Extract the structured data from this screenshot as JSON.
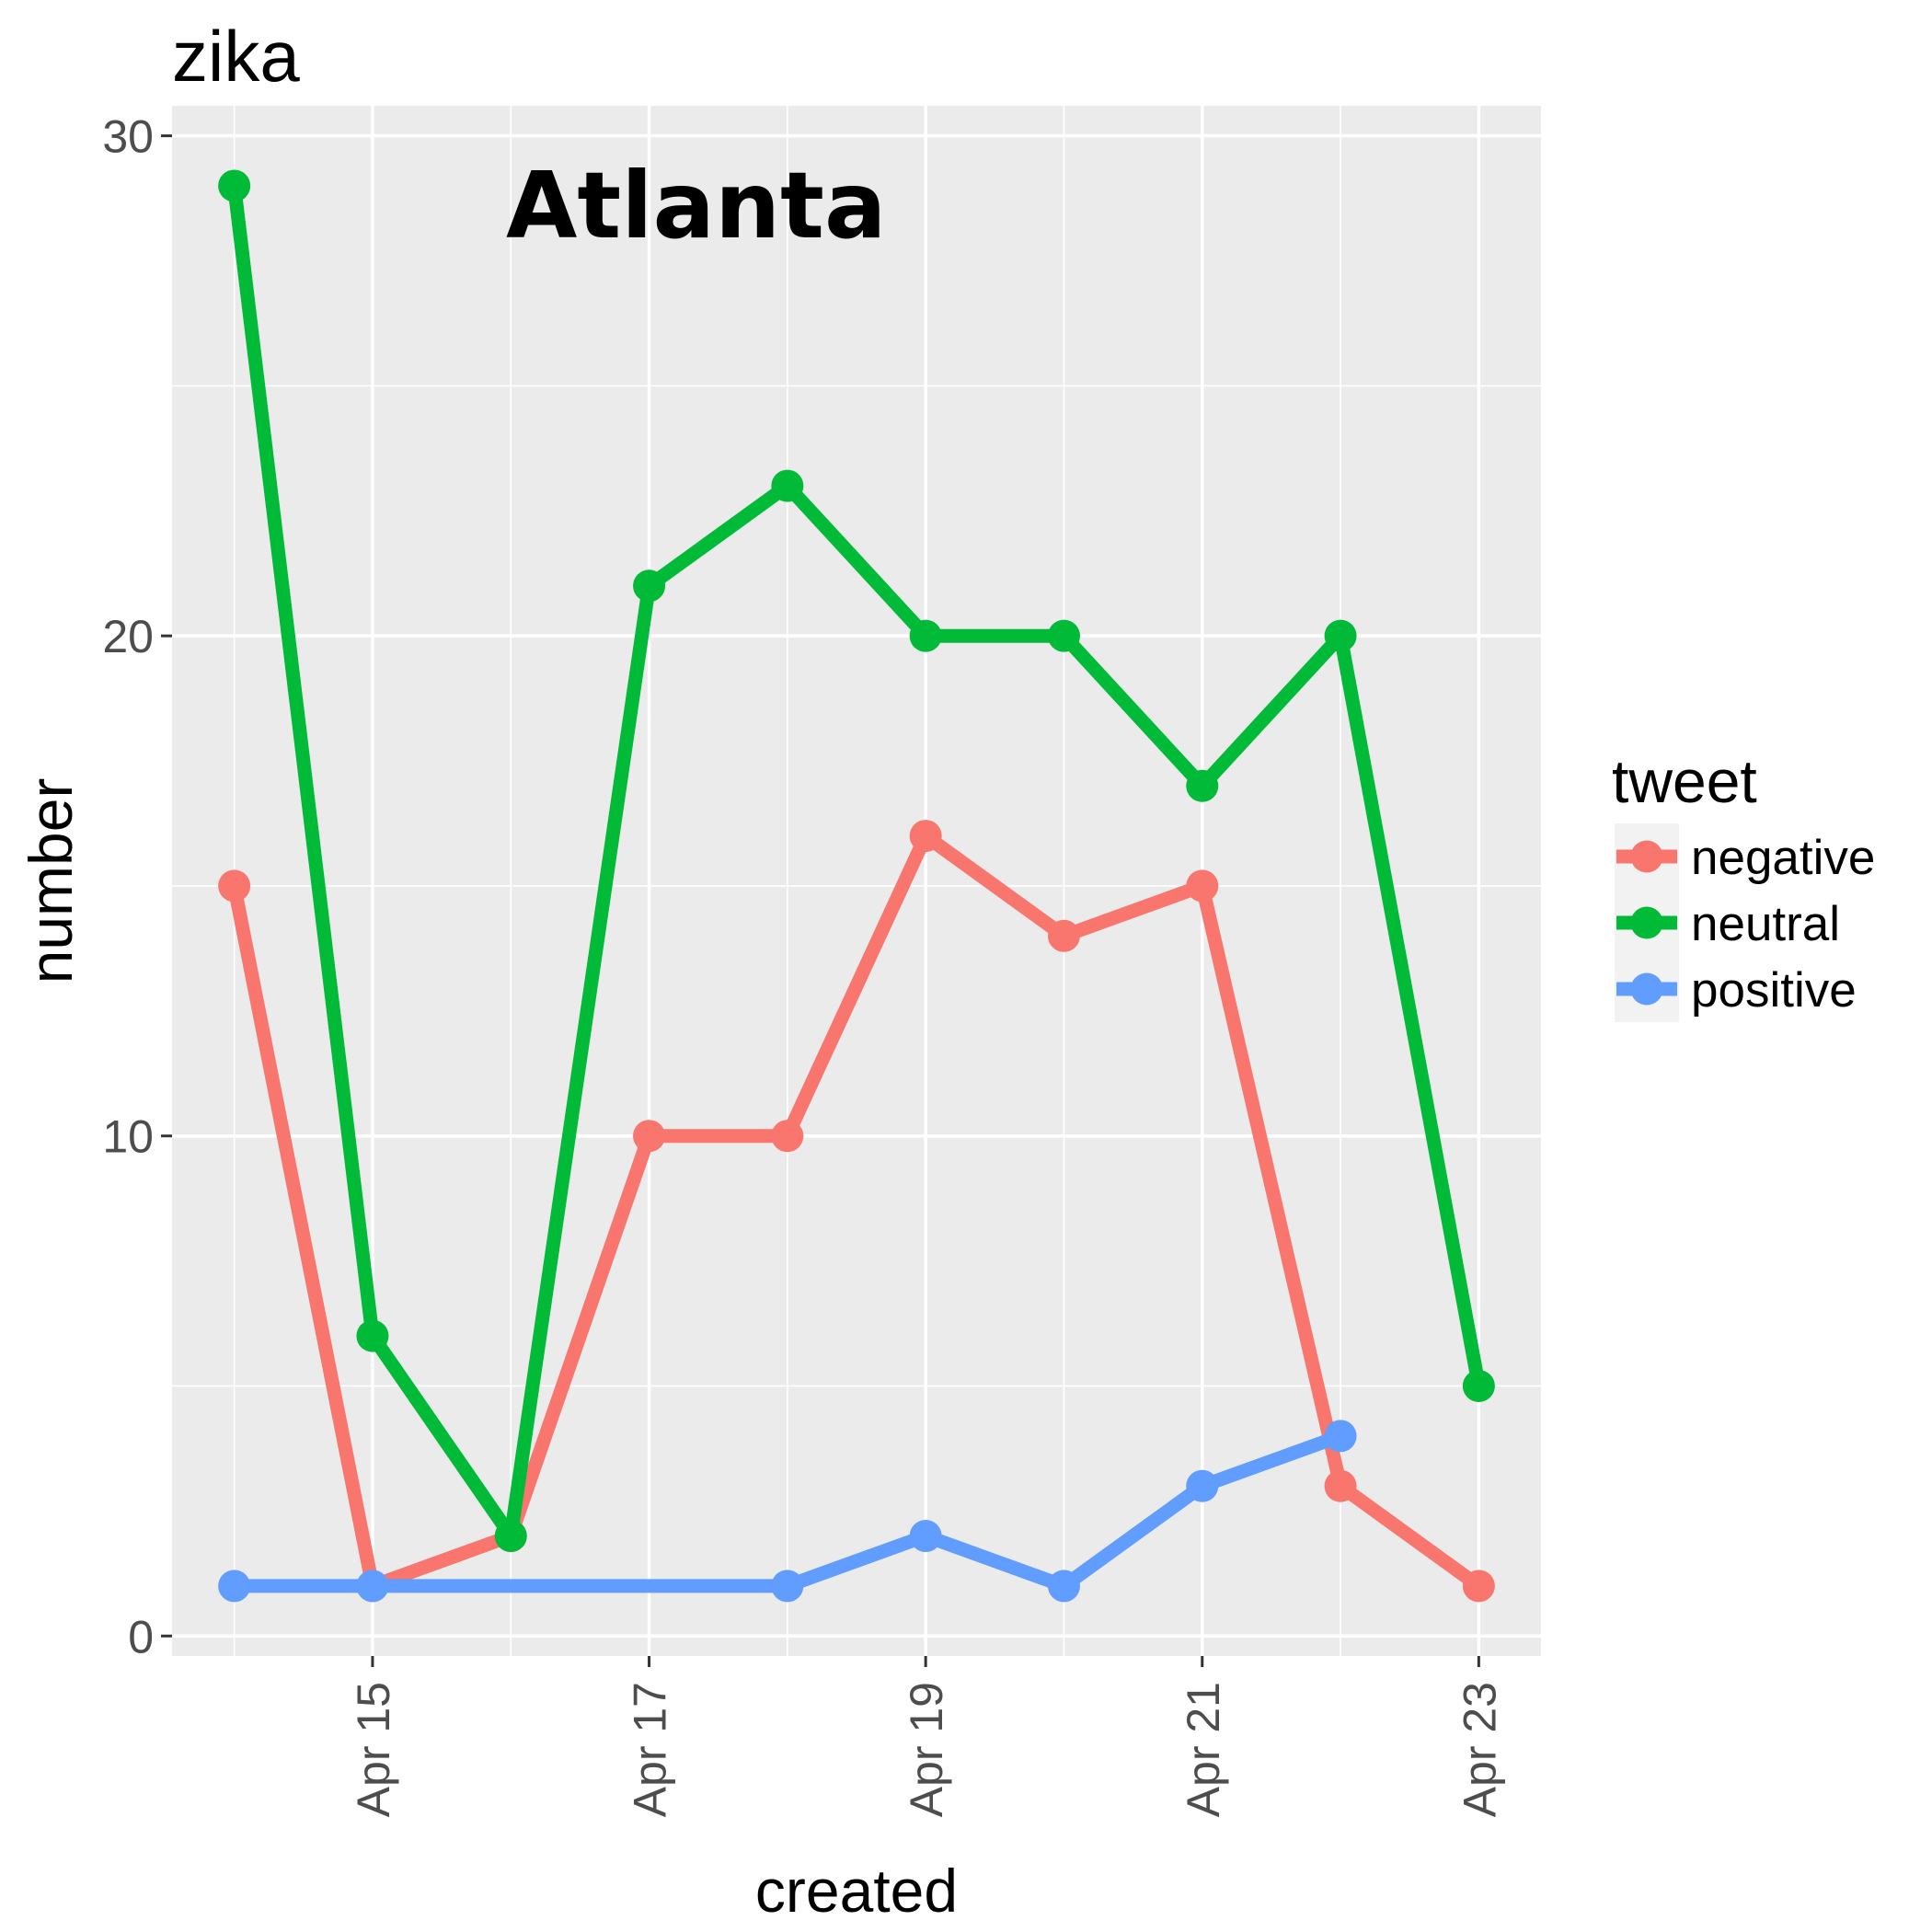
{
  "chart_data": {
    "type": "line",
    "title": "zika",
    "annotation": "Atlanta",
    "xlabel": "created",
    "ylabel": "number",
    "x": [
      "Apr 14",
      "Apr 15",
      "Apr 16",
      "Apr 17",
      "Apr 18",
      "Apr 19",
      "Apr 20",
      "Apr 21",
      "Apr 22",
      "Apr 23"
    ],
    "x_ticks": [
      {
        "label": "Apr 15",
        "index": 1
      },
      {
        "label": "Apr 17",
        "index": 3
      },
      {
        "label": "Apr 19",
        "index": 5
      },
      {
        "label": "Apr 21",
        "index": 7
      },
      {
        "label": "Apr 23",
        "index": 9
      }
    ],
    "y_ticks": [
      0,
      10,
      20,
      30
    ],
    "ylim": [
      -0.4,
      30.6
    ],
    "xlim": [
      -0.45,
      9.45
    ],
    "grid": true,
    "legend": {
      "title": "tweet",
      "position": "right"
    },
    "series": [
      {
        "name": "negative",
        "color": "#F8766D",
        "points": [
          [
            0,
            15
          ],
          [
            1,
            1
          ],
          [
            2,
            2
          ],
          [
            3,
            10
          ],
          [
            4,
            10
          ],
          [
            5,
            16
          ],
          [
            6,
            14
          ],
          [
            7,
            15
          ],
          [
            8,
            3
          ],
          [
            9,
            1
          ]
        ]
      },
      {
        "name": "neutral",
        "color": "#00BA38",
        "points": [
          [
            0,
            29
          ],
          [
            1,
            6
          ],
          [
            2,
            2
          ],
          [
            3,
            21
          ],
          [
            4,
            23
          ],
          [
            5,
            20
          ],
          [
            6,
            20
          ],
          [
            7,
            17
          ],
          [
            8,
            20
          ],
          [
            9,
            5
          ]
        ]
      },
      {
        "name": "positive",
        "color": "#619CFF",
        "points": [
          [
            0,
            1
          ],
          [
            1,
            1
          ],
          [
            4,
            1
          ],
          [
            5,
            2
          ],
          [
            6,
            1
          ],
          [
            7,
            3
          ],
          [
            8,
            4
          ]
        ]
      }
    ]
  }
}
